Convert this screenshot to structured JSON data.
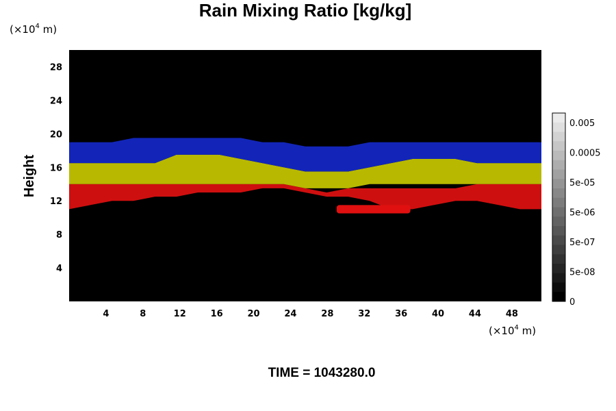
{
  "chart_data": {
    "type": "heatmap",
    "title": "Rain Mixing Ratio [kg/kg]",
    "xlabel": "",
    "ylabel": "Height",
    "x_unit": {
      "prefix": "(×10",
      "exp": "4",
      "suffix": " m)"
    },
    "y_unit": {
      "prefix": "(×10",
      "exp": "4",
      "suffix": " m)"
    },
    "xlim": [
      0,
      51.2
    ],
    "ylim": [
      0,
      30
    ],
    "x_ticks": [
      4,
      8,
      12,
      16,
      20,
      24,
      28,
      32,
      36,
      40,
      44,
      48
    ],
    "y_ticks": [
      4,
      8,
      12,
      16,
      20,
      24,
      28
    ],
    "bands": [
      {
        "name": "red",
        "color": "#e01010",
        "y_bottom": [
          11.0,
          11.5,
          12.0,
          12.0,
          12.5,
          12.5,
          13.0,
          13.0,
          13.0,
          13.5,
          13.5,
          13.0,
          12.5,
          12.5,
          12.0,
          11.0,
          11.0,
          11.5,
          12.0,
          12.0,
          11.5,
          11.0,
          11.0
        ],
        "y_top": [
          14.0,
          14.0,
          14.0,
          14.0,
          14.0,
          14.0,
          14.0,
          14.0,
          14.0,
          14.0,
          14.0,
          13.5,
          13.0,
          13.5,
          13.5,
          13.5,
          13.5,
          13.5,
          13.5,
          14.0,
          14.0,
          14.0,
          14.0
        ]
      },
      {
        "name": "yellow",
        "color": "#c8c800",
        "y_bottom": [
          14.0,
          14.0,
          14.0,
          14.0,
          14.0,
          14.0,
          14.0,
          14.0,
          14.0,
          14.0,
          14.0,
          13.5,
          13.5,
          13.5,
          14.0,
          14.0,
          14.0,
          14.0,
          14.0,
          14.0,
          14.0,
          14.0,
          14.0
        ],
        "y_top": [
          16.5,
          16.5,
          16.5,
          16.5,
          16.5,
          17.5,
          17.5,
          17.5,
          17.0,
          16.5,
          16.0,
          15.5,
          15.5,
          15.5,
          16.0,
          16.5,
          17.0,
          17.0,
          17.0,
          16.5,
          16.5,
          16.5,
          16.5
        ]
      },
      {
        "name": "blue",
        "color": "#1428c8",
        "y_bottom": [
          16.5,
          16.5,
          16.5,
          16.5,
          16.5,
          17.5,
          17.5,
          17.5,
          17.0,
          16.5,
          16.0,
          15.5,
          15.5,
          15.5,
          16.0,
          16.5,
          17.0,
          17.0,
          17.0,
          16.5,
          16.5,
          16.5,
          16.5
        ],
        "y_top": [
          19.0,
          19.0,
          19.0,
          19.5,
          19.5,
          19.5,
          19.5,
          19.5,
          19.5,
          19.0,
          19.0,
          18.5,
          18.5,
          18.5,
          19.0,
          19.0,
          19.0,
          19.0,
          19.0,
          19.0,
          19.0,
          19.0,
          19.0
        ]
      }
    ],
    "red_patch": {
      "x_range": [
        29,
        37
      ],
      "y_range": [
        10.5,
        11.5
      ],
      "color": "#e01010"
    },
    "colorbar": {
      "labels": [
        "0.005",
        "0.0005",
        "5e-05",
        "5e-06",
        "5e-07",
        "5e-08",
        "0"
      ],
      "levels": 20
    },
    "background_color": "#000000",
    "time_label": "TIME = 1043280.0"
  }
}
